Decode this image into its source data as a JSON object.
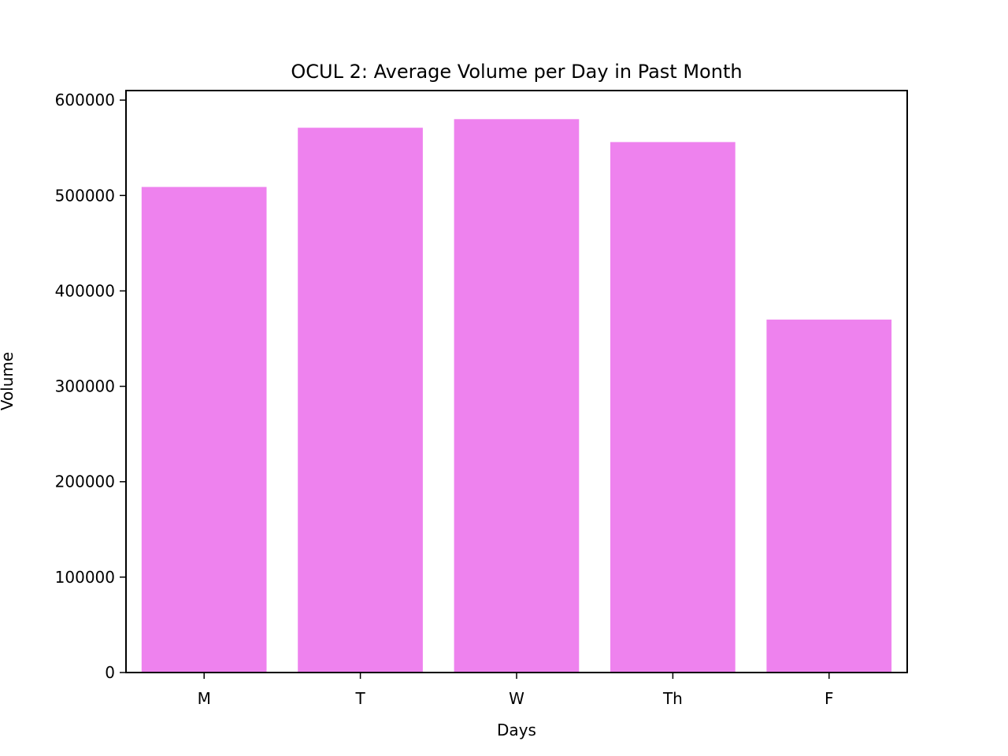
{
  "chart_data": {
    "type": "bar",
    "title": "OCUL 2: Average Volume per Day in Past Month",
    "xlabel": "Days",
    "ylabel": "Volume",
    "categories": [
      "M",
      "T",
      "W",
      "Th",
      "F"
    ],
    "values": [
      509000,
      571000,
      580000,
      556000,
      370000
    ],
    "ylim": [
      0,
      610000
    ],
    "yticks": [
      0,
      100000,
      200000,
      300000,
      400000,
      500000,
      600000
    ],
    "bar_color": "#ee82ee",
    "grid": false,
    "legend": "none"
  }
}
